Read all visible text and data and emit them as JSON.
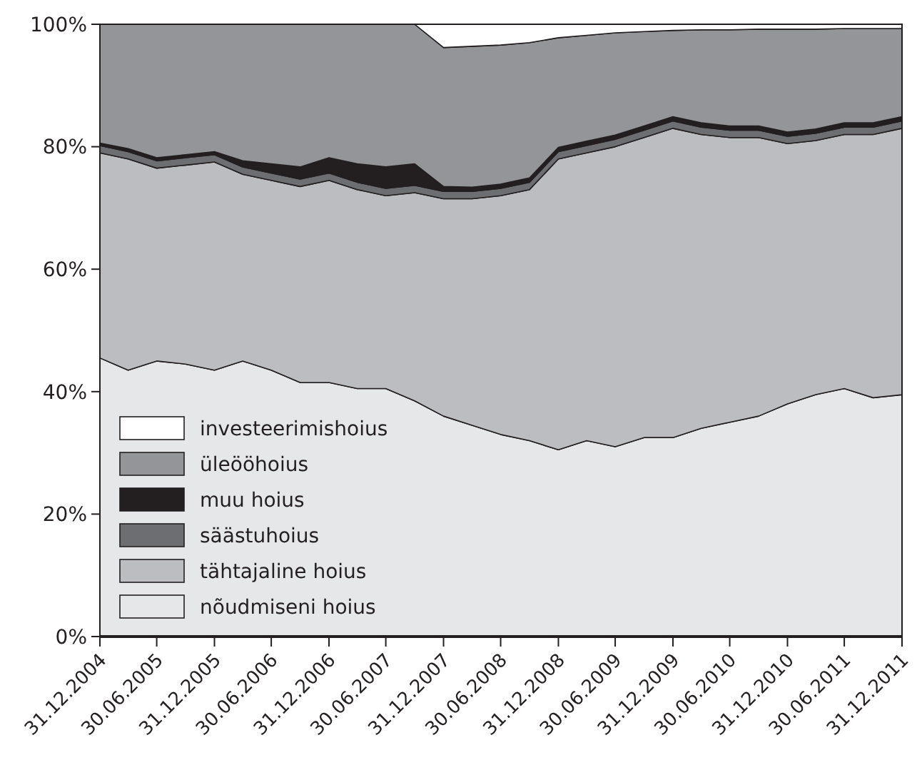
{
  "chart_data": {
    "type": "area",
    "stacked": true,
    "legend": "bottom left",
    "grid": false,
    "x": [
      "2004-12-31",
      "2005-03-31",
      "2005-06-30",
      "2005-09-30",
      "2005-12-31",
      "2006-03-31",
      "2006-06-30",
      "2006-09-30",
      "2006-12-31",
      "2007-03-31",
      "2007-06-30",
      "2007-09-30",
      "2007-12-31",
      "2008-03-31",
      "2008-06-30",
      "2008-09-30",
      "2008-12-31",
      "2009-03-31",
      "2009-06-30",
      "2009-09-30",
      "2009-12-31",
      "2010-03-31",
      "2010-06-30",
      "2010-09-30",
      "2010-12-31",
      "2011-03-31",
      "2011-06-30",
      "2011-09-30",
      "2011-12-31"
    ],
    "xlim": [
      "2004-12-31",
      "2011-12-31"
    ],
    "xticks": [
      {
        "value": "2004-12-31",
        "label": "31.12.2004"
      },
      {
        "value": "2005-06-30",
        "label": "30.06.2005"
      },
      {
        "value": "2005-12-31",
        "label": "31.12.2005"
      },
      {
        "value": "2006-06-30",
        "label": "30.06.2006"
      },
      {
        "value": "2006-12-31",
        "label": "31.12.2006"
      },
      {
        "value": "2007-06-30",
        "label": "30.06.2007"
      },
      {
        "value": "2007-12-31",
        "label": "31.12.2007"
      },
      {
        "value": "2008-06-30",
        "label": "30.06.2008"
      },
      {
        "value": "2008-12-31",
        "label": "31.12.2008"
      },
      {
        "value": "2009-06-30",
        "label": "30.06.2009"
      },
      {
        "value": "2009-12-31",
        "label": "31.12.2009"
      },
      {
        "value": "2010-06-30",
        "label": "30.06.2010"
      },
      {
        "value": "2010-12-31",
        "label": "31.12.2010"
      },
      {
        "value": "2011-06-30",
        "label": "30.06.2011"
      },
      {
        "value": "2011-12-31",
        "label": "31.12.2011"
      }
    ],
    "ylim": [
      0,
      100
    ],
    "yticks": [
      {
        "value": 0,
        "label": "0%"
      },
      {
        "value": 20,
        "label": "20%"
      },
      {
        "value": 40,
        "label": "40%"
      },
      {
        "value": 60,
        "label": "60%"
      },
      {
        "value": 80,
        "label": "80%"
      },
      {
        "value": 100,
        "label": "100%"
      }
    ],
    "series": [
      {
        "name": "nõudmiseni hoius",
        "color": "#e6e7e8",
        "values": [
          45.5,
          43.5,
          45,
          44.5,
          43.5,
          45,
          43.5,
          41.5,
          41.5,
          40.5,
          40.5,
          38.5,
          36,
          34.5,
          33,
          32,
          30.5,
          32,
          31,
          32.5,
          32.5,
          34,
          35,
          36,
          38,
          39.5,
          40.5,
          39,
          39.5
        ]
      },
      {
        "name": "tähtajaline hoius",
        "color": "#bcbdc0",
        "values": [
          33.5,
          34.5,
          31.5,
          32.5,
          34,
          30.5,
          31,
          32,
          33,
          32.5,
          31.5,
          34,
          35.5,
          37,
          39,
          41,
          47.5,
          47,
          49,
          49,
          50.5,
          48,
          46.5,
          45.5,
          42.5,
          41.5,
          41.5,
          43,
          43.5
        ]
      },
      {
        "name": "säästuhoius",
        "color": "#6d6e71",
        "values": [
          1.2,
          1.2,
          1.2,
          1.2,
          1.2,
          1.2,
          1.2,
          1.2,
          1.2,
          1.2,
          1.2,
          1.2,
          1.2,
          1.2,
          1.2,
          1.2,
          1.2,
          1.2,
          1.2,
          1.2,
          1.2,
          1.2,
          1.2,
          1.2,
          1.2,
          1.2,
          1.2,
          1.2,
          1.2
        ]
      },
      {
        "name": "muu hoius",
        "color": "#231f20",
        "values": [
          0.4,
          0.5,
          0.5,
          0.5,
          0.5,
          1,
          1.5,
          2,
          2.5,
          3,
          3.5,
          3.5,
          0.8,
          0.7,
          0.7,
          0.7,
          0.7,
          0.7,
          0.7,
          0.7,
          0.7,
          0.7,
          0.7,
          0.7,
          0.7,
          0.7,
          0.7,
          0.7,
          0.7
        ]
      },
      {
        "name": "üleööhoius",
        "color": "#939598",
        "values": [
          19.4,
          20.3,
          21.8,
          21.3,
          20.8,
          22.3,
          22.8,
          23.3,
          21.8,
          22.8,
          23.3,
          22.8,
          22.7,
          23,
          22.7,
          22.1,
          17.9,
          17.3,
          16.7,
          15.4,
          14.1,
          15.2,
          15.7,
          15.8,
          16.8,
          16.3,
          15.4,
          15.4,
          14.4
        ]
      },
      {
        "name": "investeerimishoius",
        "color": "#ffffff",
        "values": [
          0,
          0,
          0,
          0,
          0,
          0,
          0,
          0,
          0,
          0,
          0,
          0,
          3.8,
          3.6,
          3.4,
          3,
          2.2,
          1.8,
          1.4,
          1.2,
          1,
          0.9,
          0.9,
          0.8,
          0.8,
          0.8,
          0.7,
          0.7,
          0.7
        ]
      }
    ]
  }
}
